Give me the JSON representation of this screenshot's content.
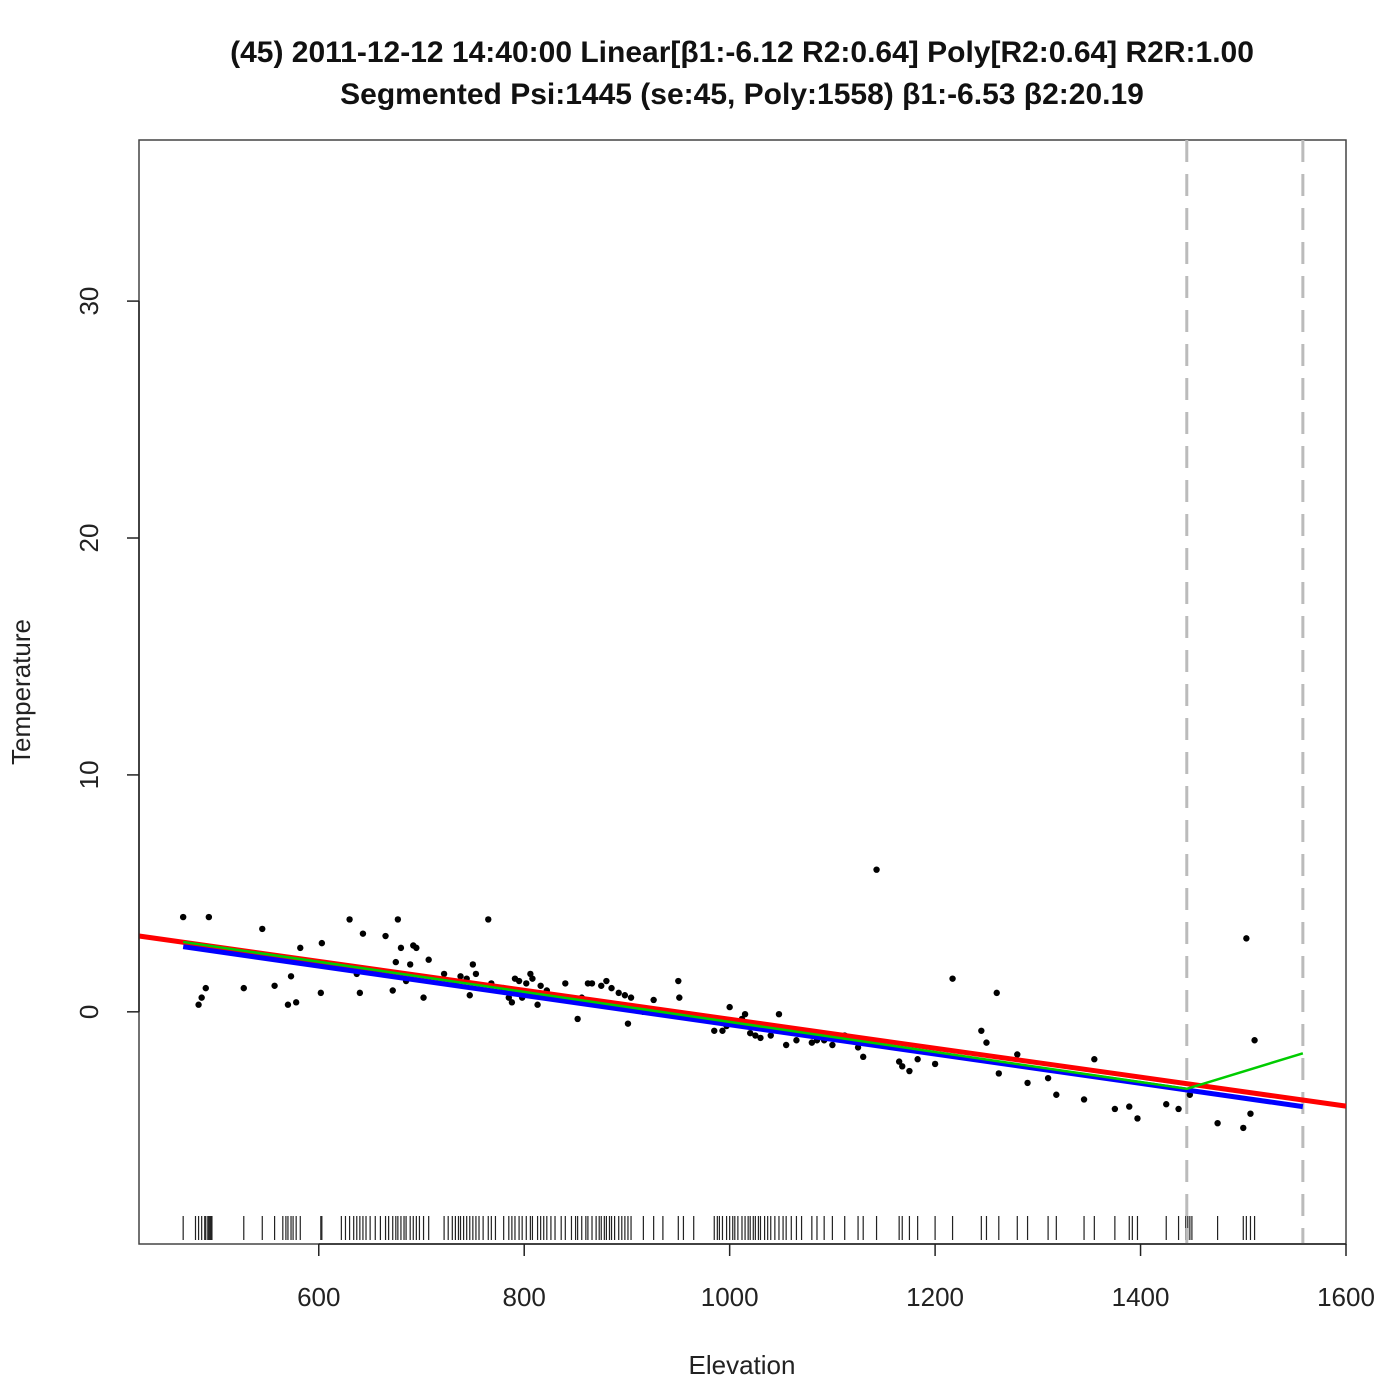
{
  "chart_data": {
    "type": "scatter",
    "title": "(45) 2011-12-12 14:40:00 Linear[β1:-6.12 R2:0.64] Poly[R2:0.64] R2R:1.00",
    "subtitle": "Segmented Psi:1445 (se:45, Poly:1558) β1:-6.53 β2:20.19",
    "xlabel": "Elevation",
    "ylabel": "Temperature",
    "xlim": [
      425,
      1600
    ],
    "ylim": [
      -9.8,
      36.8
    ],
    "x_ticks": [
      600,
      800,
      1000,
      1200,
      1400,
      1600
    ],
    "y_ticks": [
      0,
      10,
      20,
      30
    ],
    "grid": false,
    "points": [
      [
        468,
        4.0
      ],
      [
        483,
        0.3
      ],
      [
        486,
        0.6
      ],
      [
        490,
        1.0
      ],
      [
        493,
        4.0
      ],
      [
        527,
        1.0
      ],
      [
        545,
        3.5
      ],
      [
        557,
        1.1
      ],
      [
        570,
        0.3
      ],
      [
        573,
        1.5
      ],
      [
        578,
        0.4
      ],
      [
        582,
        2.7
      ],
      [
        602,
        0.8
      ],
      [
        603,
        2.9
      ],
      [
        630,
        3.9
      ],
      [
        637,
        1.6
      ],
      [
        640,
        0.8
      ],
      [
        643,
        3.3
      ],
      [
        655,
        1.7
      ],
      [
        665,
        3.2
      ],
      [
        672,
        0.9
      ],
      [
        675,
        2.1
      ],
      [
        677,
        3.9
      ],
      [
        680,
        2.7
      ],
      [
        685,
        1.3
      ],
      [
        689,
        2.0
      ],
      [
        692,
        2.8
      ],
      [
        695,
        2.7
      ],
      [
        702,
        0.6
      ],
      [
        707,
        2.2
      ],
      [
        722,
        1.6
      ],
      [
        733,
        1.2
      ],
      [
        738,
        1.5
      ],
      [
        744,
        1.4
      ],
      [
        747,
        0.7
      ],
      [
        750,
        2.0
      ],
      [
        753,
        1.6
      ],
      [
        765,
        3.9
      ],
      [
        768,
        1.2
      ],
      [
        780,
        1.0
      ],
      [
        785,
        0.6
      ],
      [
        788,
        0.4
      ],
      [
        791,
        1.4
      ],
      [
        795,
        1.3
      ],
      [
        798,
        0.6
      ],
      [
        802,
        1.2
      ],
      [
        806,
        1.6
      ],
      [
        808,
        1.4
      ],
      [
        813,
        0.3
      ],
      [
        816,
        1.1
      ],
      [
        822,
        0.9
      ],
      [
        830,
        0.6
      ],
      [
        840,
        1.2
      ],
      [
        846,
        0.5
      ],
      [
        852,
        -0.3
      ],
      [
        856,
        0.6
      ],
      [
        862,
        1.2
      ],
      [
        866,
        1.2
      ],
      [
        870,
        0.3
      ],
      [
        875,
        1.1
      ],
      [
        880,
        1.3
      ],
      [
        885,
        1.0
      ],
      [
        892,
        0.8
      ],
      [
        898,
        0.7
      ],
      [
        901,
        -0.5
      ],
      [
        904,
        0.6
      ],
      [
        916,
        0.0
      ],
      [
        926,
        0.5
      ],
      [
        950,
        1.3
      ],
      [
        951,
        0.6
      ],
      [
        985,
        -0.8
      ],
      [
        990,
        -0.3
      ],
      [
        993,
        -0.8
      ],
      [
        997,
        -0.6
      ],
      [
        1000,
        0.2
      ],
      [
        1005,
        -0.5
      ],
      [
        1012,
        -0.3
      ],
      [
        1015,
        -0.1
      ],
      [
        1020,
        -0.9
      ],
      [
        1025,
        -1.0
      ],
      [
        1030,
        -1.1
      ],
      [
        1040,
        -1.0
      ],
      [
        1048,
        -0.1
      ],
      [
        1055,
        -1.4
      ],
      [
        1065,
        -1.2
      ],
      [
        1070,
        -0.9
      ],
      [
        1080,
        -1.3
      ],
      [
        1085,
        -1.2
      ],
      [
        1092,
        -1.2
      ],
      [
        1100,
        -1.4
      ],
      [
        1112,
        -1.0
      ],
      [
        1125,
        -1.5
      ],
      [
        1130,
        -1.9
      ],
      [
        1143,
        6.0
      ],
      [
        1165,
        -2.1
      ],
      [
        1168,
        -2.3
      ],
      [
        1175,
        -2.5
      ],
      [
        1183,
        -2.0
      ],
      [
        1200,
        -2.2
      ],
      [
        1217,
        1.4
      ],
      [
        1245,
        -0.8
      ],
      [
        1250,
        -1.3
      ],
      [
        1260,
        0.8
      ],
      [
        1262,
        -2.6
      ],
      [
        1280,
        -1.8
      ],
      [
        1290,
        -3.0
      ],
      [
        1310,
        -2.8
      ],
      [
        1318,
        -3.5
      ],
      [
        1345,
        -3.7
      ],
      [
        1355,
        -2.0
      ],
      [
        1375,
        -4.1
      ],
      [
        1389,
        -4.0
      ],
      [
        1397,
        -4.5
      ],
      [
        1425,
        -3.9
      ],
      [
        1437,
        -4.1
      ],
      [
        1448,
        -3.5
      ],
      [
        1475,
        -4.7
      ],
      [
        1500,
        -4.9
      ],
      [
        1503,
        3.1
      ],
      [
        1507,
        -4.3
      ],
      [
        1511,
        -1.2
      ]
    ],
    "rug_x": [
      468,
      480,
      483,
      486,
      489,
      490,
      492,
      493,
      494,
      495,
      496,
      527,
      545,
      557,
      565,
      568,
      570,
      573,
      575,
      578,
      582,
      602,
      603,
      622,
      626,
      630,
      634,
      637,
      640,
      643,
      646,
      650,
      655,
      660,
      665,
      668,
      672,
      675,
      677,
      680,
      683,
      685,
      689,
      692,
      695,
      698,
      702,
      707,
      722,
      726,
      730,
      733,
      736,
      738,
      741,
      744,
      747,
      750,
      753,
      756,
      760,
      765,
      768,
      772,
      780,
      785,
      788,
      791,
      795,
      798,
      802,
      806,
      808,
      813,
      816,
      819,
      822,
      826,
      830,
      836,
      840,
      846,
      850,
      852,
      856,
      860,
      862,
      866,
      870,
      873,
      875,
      878,
      880,
      883,
      885,
      888,
      892,
      895,
      898,
      901,
      904,
      916,
      926,
      935,
      950,
      955,
      965,
      985,
      988,
      990,
      993,
      997,
      1000,
      1003,
      1005,
      1008,
      1012,
      1015,
      1018,
      1020,
      1023,
      1025,
      1028,
      1030,
      1034,
      1037,
      1040,
      1044,
      1048,
      1052,
      1055,
      1060,
      1065,
      1070,
      1080,
      1085,
      1092,
      1100,
      1112,
      1125,
      1130,
      1143,
      1165,
      1168,
      1175,
      1183,
      1200,
      1217,
      1245,
      1250,
      1262,
      1280,
      1290,
      1310,
      1318,
      1345,
      1355,
      1375,
      1389,
      1392,
      1397,
      1425,
      1437,
      1444,
      1446,
      1448,
      1450,
      1475,
      1500,
      1503,
      1507,
      1511
    ],
    "series": [
      {
        "name": "",
        "color": "#ff0000",
        "line_width": 5,
        "x": [
          425,
          1600
        ],
        "y": [
          3.2,
          -3.98
        ]
      },
      {
        "name": "",
        "color": "#0000ff",
        "line_width": 5,
        "x": [
          468,
          1558
        ],
        "y": [
          2.75,
          -4.0
        ]
      },
      {
        "name": "",
        "color": "#00cc00",
        "line_width": 2.5,
        "x": [
          468,
          1445,
          1558
        ],
        "y": [
          2.95,
          -3.25,
          -1.75
        ]
      }
    ],
    "vlines": [
      {
        "x": 1445,
        "color": "#bbbbbb",
        "style": "dashed"
      },
      {
        "x": 1558,
        "color": "#bbbbbb",
        "style": "dashed"
      }
    ],
    "marker_color": "#000000"
  }
}
